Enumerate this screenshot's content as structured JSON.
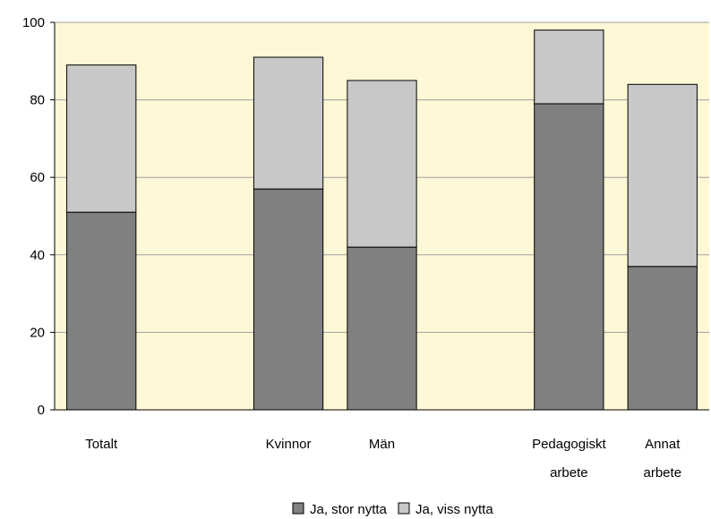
{
  "chart_data": {
    "type": "bar",
    "stacked": true,
    "categories": [
      [
        "Totalt"
      ],
      [
        "Kvinnor"
      ],
      [
        "Män"
      ],
      [
        "Pedagogiskt",
        "arbete"
      ],
      [
        "Annat",
        "arbete"
      ]
    ],
    "series": [
      {
        "name": "Ja, stor nytta",
        "color": "#808080",
        "values": [
          51,
          57,
          42,
          79,
          37
        ]
      },
      {
        "name": "Ja, viss nytta",
        "color": "#c8c8c8",
        "values": [
          38,
          34,
          43,
          19,
          47
        ]
      }
    ],
    "ylim": [
      0,
      100
    ],
    "yticks": [
      "0",
      "20",
      "40",
      "60",
      "80",
      "100"
    ],
    "grid": true,
    "legend": "bottom",
    "plot_background": "#fff8d6"
  }
}
